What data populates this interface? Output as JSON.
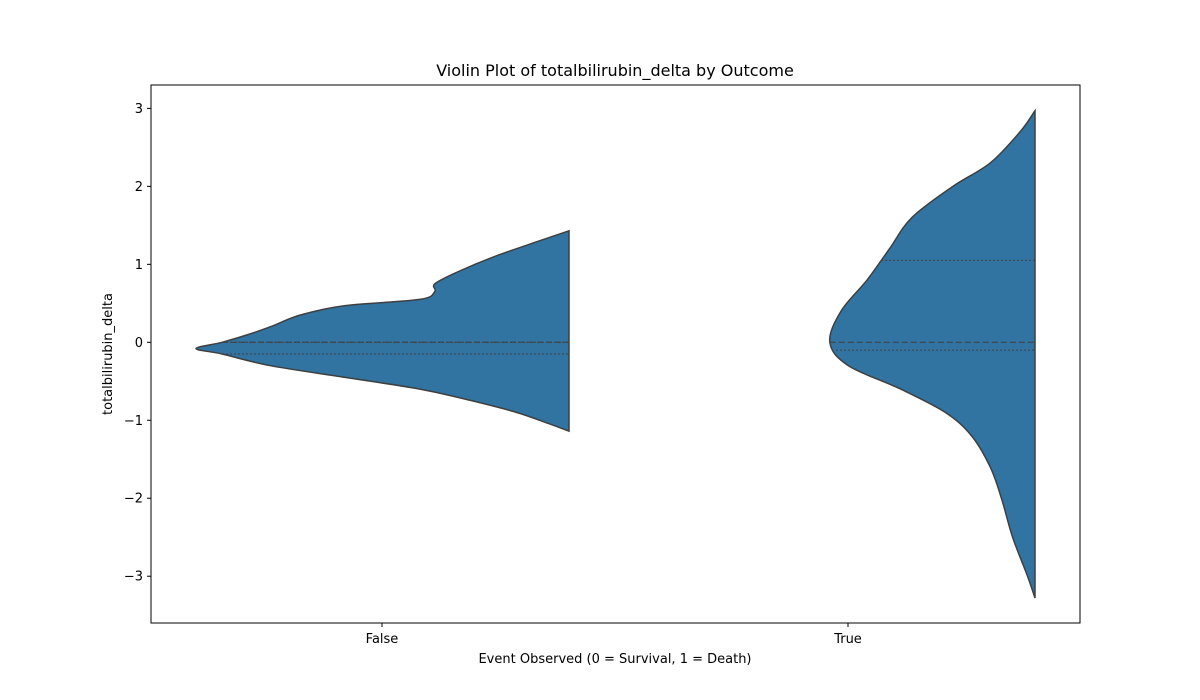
{
  "chart_data": {
    "type": "violin",
    "title": "Violin Plot of totalbilirubin_delta by Outcome",
    "xlabel": "Event Observed (0 = Survival, 1 = Death)",
    "ylabel": "totalbilirubin_delta",
    "categories": [
      "False",
      "True"
    ],
    "ylim": [
      -3.6,
      3.3
    ],
    "yticks": [
      -3,
      -2,
      -1,
      0,
      1,
      2,
      3
    ],
    "ytick_labels": [
      "−3",
      "−2",
      "−1",
      "0",
      "1",
      "2",
      "3"
    ],
    "grid": false,
    "legend": null,
    "split": "left-half",
    "color": "#3274a1",
    "edge_color": "#3f3f3f",
    "violins": [
      {
        "category": "False",
        "min": -1.14,
        "max": 1.43,
        "quartiles": {
          "q1": -0.15,
          "median": 0.0,
          "q3": 0.0
        },
        "density_profile": [
          [
            1.43,
            0.0
          ],
          [
            1.3,
            0.08
          ],
          [
            1.1,
            0.2
          ],
          [
            0.9,
            0.3
          ],
          [
            0.75,
            0.36
          ],
          [
            0.65,
            0.36
          ],
          [
            0.55,
            0.4
          ],
          [
            0.47,
            0.6
          ],
          [
            0.35,
            0.72
          ],
          [
            0.2,
            0.8
          ],
          [
            0.1,
            0.86
          ],
          [
            0.0,
            0.93
          ],
          [
            -0.08,
            1.0
          ],
          [
            -0.15,
            0.93
          ],
          [
            -0.3,
            0.8
          ],
          [
            -0.45,
            0.6
          ],
          [
            -0.6,
            0.4
          ],
          [
            -0.75,
            0.26
          ],
          [
            -0.9,
            0.14
          ],
          [
            -1.05,
            0.05
          ],
          [
            -1.14,
            0.0
          ]
        ]
      },
      {
        "category": "True",
        "min": -3.28,
        "max": 2.97,
        "quartiles": {
          "q1": -0.1,
          "median": 0.0,
          "q3": 1.05
        },
        "density_profile": [
          [
            2.97,
            0.0
          ],
          [
            2.7,
            0.04
          ],
          [
            2.3,
            0.12
          ],
          [
            2.0,
            0.22
          ],
          [
            1.6,
            0.33
          ],
          [
            1.2,
            0.39
          ],
          [
            0.8,
            0.45
          ],
          [
            0.4,
            0.52
          ],
          [
            0.0,
            0.55
          ],
          [
            -0.3,
            0.5
          ],
          [
            -0.6,
            0.36
          ],
          [
            -0.9,
            0.24
          ],
          [
            -1.2,
            0.17
          ],
          [
            -1.6,
            0.12
          ],
          [
            -2.0,
            0.09
          ],
          [
            -2.5,
            0.06
          ],
          [
            -3.0,
            0.02
          ],
          [
            -3.28,
            0.0
          ]
        ]
      }
    ]
  }
}
